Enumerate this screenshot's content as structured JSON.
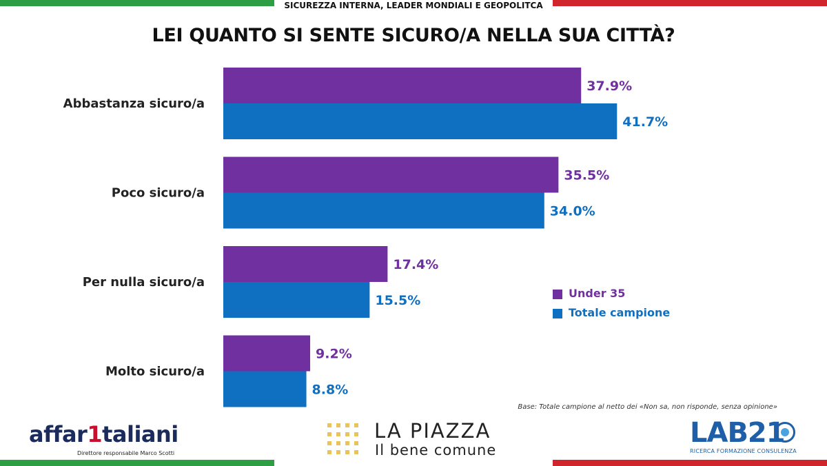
{
  "header": {
    "topic": "SICUREZZA INTERNA, LEADER MONDIALI E GEOPOLITCA",
    "flag_colors": {
      "green": "#2e9e45",
      "white": "#ffffff",
      "red": "#d0252c"
    }
  },
  "chart_data": {
    "type": "bar",
    "orientation": "horizontal",
    "title": "LEI QUANTO SI SENTE SICURO/A NELLA SUA CITTÀ?",
    "categories": [
      "Abbastanza sicuro/a",
      "Poco sicuro/a",
      "Per nulla sicuro/a",
      "Molto sicuro/a"
    ],
    "series": [
      {
        "name": "Under 35",
        "values": [
          37.9,
          35.5,
          17.4,
          9.2
        ],
        "labels": [
          "37.9%",
          "35.5%",
          "17.4%",
          "9.2%"
        ],
        "color": "#7030a0"
      },
      {
        "name": "Totale campione",
        "values": [
          41.7,
          34.0,
          15.5,
          8.8
        ],
        "labels": [
          "41.7%",
          "34.0%",
          "15.5%",
          "8.8%"
        ],
        "color": "#0f6fc0"
      }
    ],
    "legend_position": "right",
    "grid": false
  },
  "legend": {
    "items": [
      {
        "label": "Under 35",
        "color": "#7030a0"
      },
      {
        "label": "Totale campione",
        "color": "#0f6fc0"
      }
    ]
  },
  "footer": {
    "base_note": "Base: Totale campione al netto dei «Non sa, non risponde, senza opinione»",
    "affari": {
      "pre": "affar",
      "one": "1",
      "post": "taliani",
      "sub": "Direttore responsabile Marco Scotti"
    },
    "piazza": {
      "title": "LA PIAZZA",
      "sub": "Il bene comune"
    },
    "lab": {
      "name": "LAB21",
      "sub": "RICERCA FORMAZIONE CONSULENZA"
    }
  }
}
